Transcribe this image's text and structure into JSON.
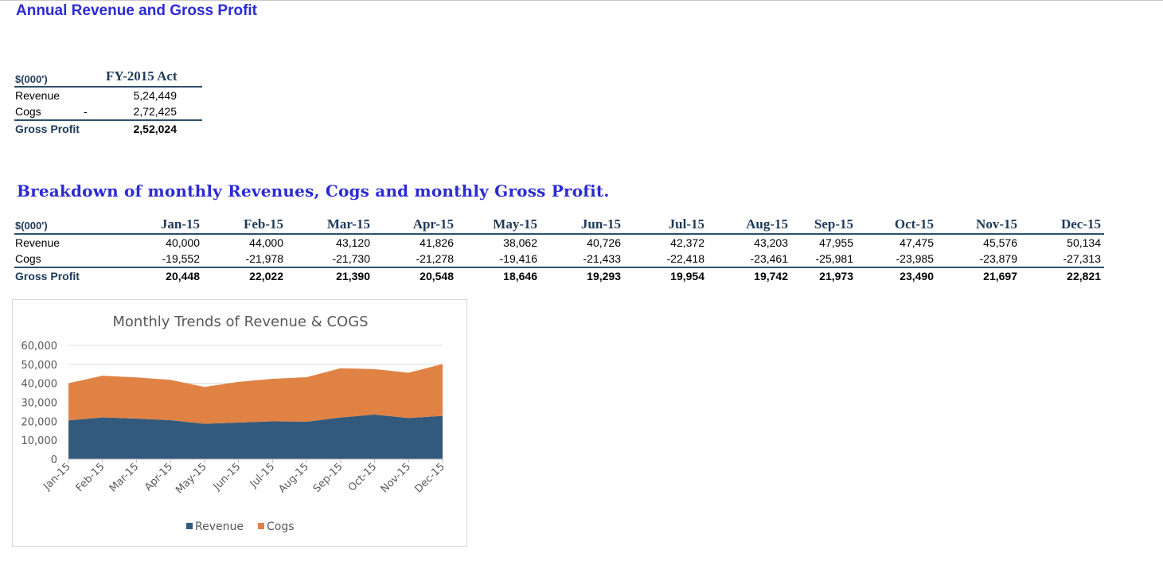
{
  "titles": {
    "annual": "Annual Revenue and Gross Profit",
    "monthly": "Breakdown of monthly Revenues, Cogs and monthly Gross Profit."
  },
  "annual_table": {
    "unit_label": "$(000')",
    "column": "FY-2015 Act",
    "revenue_label": "Revenue",
    "revenue_value": "5,24,449",
    "cogs_label": "Cogs",
    "cogs_sign": "-",
    "cogs_value": "2,72,425",
    "gp_label": "Gross Profit",
    "gp_value": "2,52,024"
  },
  "monthly_table": {
    "unit_label": "$(000')",
    "row_labels": {
      "revenue": "Revenue",
      "cogs": "Cogs",
      "gp": "Gross Profit"
    },
    "months": [
      "Jan-15",
      "Feb-15",
      "Mar-15",
      "Apr-15",
      "May-15",
      "Jun-15",
      "Jul-15",
      "Aug-15",
      "Sep-15",
      "Oct-15",
      "Nov-15",
      "Dec-15"
    ],
    "revenue": [
      "40,000",
      "44,000",
      "43,120",
      "41,826",
      "38,062",
      "40,726",
      "42,372",
      "43,203",
      "47,955",
      "47,475",
      "45,576",
      "50,134"
    ],
    "cogs": [
      "-19,552",
      "-21,978",
      "-21,730",
      "-21,278",
      "-19,416",
      "-21,433",
      "-22,418",
      "-23,461",
      "-25,981",
      "-23,985",
      "-23,879",
      "-27,313"
    ],
    "gp": [
      "20,448",
      "22,022",
      "21,390",
      "20,548",
      "18,646",
      "19,293",
      "19,954",
      "19,742",
      "21,973",
      "23,490",
      "21,697",
      "22,821"
    ]
  },
  "chart_data": {
    "type": "area",
    "title": "Monthly Trends of Revenue & COGS",
    "categories": [
      "Jan-15",
      "Feb-15",
      "Mar-15",
      "Apr-15",
      "May-15",
      "Jun-15",
      "Jul-15",
      "Aug-15",
      "Sep-15",
      "Oct-15",
      "Nov-15",
      "Dec-15"
    ],
    "series": [
      {
        "name": "Revenue",
        "color": "#335a7c",
        "values": [
          20448,
          22022,
          21390,
          20548,
          18646,
          19293,
          19954,
          19742,
          21973,
          23490,
          21697,
          22821
        ]
      },
      {
        "name": "Cogs",
        "color": "#e08244",
        "values": [
          19552,
          21978,
          21730,
          21278,
          19416,
          21433,
          22418,
          23461,
          25981,
          23985,
          23879,
          27313
        ]
      }
    ],
    "stacked": true,
    "ylim": [
      0,
      60000
    ],
    "yticks": [
      "0",
      "10,000",
      "20,000",
      "30,000",
      "40,000",
      "50,000",
      "60,000"
    ],
    "grid": true,
    "legend": "bottom"
  }
}
